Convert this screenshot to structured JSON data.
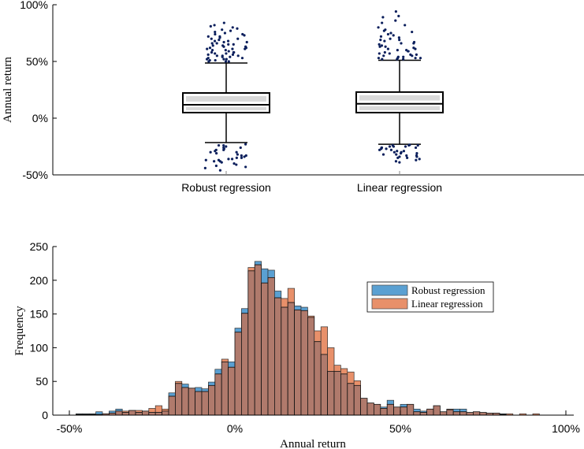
{
  "chart_data": [
    {
      "type": "box",
      "title": "",
      "ylabel": "Annual return",
      "ylim": [
        -50,
        100
      ],
      "yticks": [
        -50,
        0,
        50,
        100
      ],
      "ytick_labels": [
        "-50%",
        "0%",
        "50%",
        "100%"
      ],
      "categories": [
        "Robust regression",
        "Linear regression"
      ],
      "box_color": "#d9d9d9",
      "outlier_color": "#0b1f5c",
      "series": [
        {
          "name": "Robust regression",
          "whisker_low": -21.5,
          "q1": 4.9,
          "median": 11.8,
          "q3": 22.2,
          "whisker_high": 48.6,
          "outliers_high": [
            50,
            50,
            51,
            51,
            52,
            52,
            53,
            53,
            54,
            54,
            55,
            55,
            56,
            56,
            57,
            57,
            58,
            58,
            59,
            60,
            60,
            61,
            61,
            62,
            62,
            63,
            63,
            64,
            64,
            65,
            65,
            66,
            66,
            67,
            67,
            68,
            68,
            69,
            70,
            70,
            71,
            72,
            72,
            73,
            74,
            74,
            75,
            76,
            77,
            78,
            79,
            80,
            81,
            82,
            84,
            50,
            52,
            55,
            58,
            61
          ],
          "outliers_low": [
            -23,
            -24,
            -24,
            -25,
            -26,
            -26,
            -27,
            -28,
            -28,
            -29,
            -30,
            -30,
            -31,
            -32,
            -33,
            -33,
            -34,
            -35,
            -35,
            -36,
            -36,
            -37,
            -37,
            -38,
            -38,
            -39,
            -40,
            -41,
            -42,
            -43,
            -44,
            -46
          ]
        },
        {
          "name": "Linear regression",
          "whisker_low": -23,
          "q1": 4.9,
          "median": 12.7,
          "q3": 23,
          "whisker_high": 51,
          "outliers_high": [
            52,
            52,
            52,
            53,
            53,
            53,
            54,
            54,
            55,
            55,
            56,
            57,
            57,
            58,
            59,
            59,
            60,
            61,
            61,
            62,
            63,
            63,
            64,
            65,
            66,
            66,
            67,
            68,
            69,
            69,
            70,
            71,
            72,
            73,
            74,
            75,
            76,
            77,
            78,
            80,
            82,
            84,
            86,
            89,
            90,
            94,
            53,
            56,
            60
          ],
          "outliers_low": [
            -23.5,
            -24,
            -24,
            -24,
            -25,
            -25,
            -25,
            -26,
            -26,
            -26,
            -27,
            -27,
            -28,
            -28,
            -29,
            -29,
            -30,
            -30,
            -31,
            -31,
            -32,
            -32,
            -33,
            -33,
            -34,
            -34,
            -35,
            -35,
            -36,
            -37,
            -38,
            -39
          ]
        }
      ]
    },
    {
      "type": "bar",
      "title": "",
      "xlabel": "Annual return",
      "ylabel": "Frequency",
      "xlim": [
        -50,
        100
      ],
      "ylim": [
        0,
        250
      ],
      "xticks": [
        -50,
        0,
        50,
        100
      ],
      "xtick_labels": [
        "-50%",
        "0%",
        "50%",
        "100%"
      ],
      "yticks": [
        0,
        50,
        100,
        150,
        200,
        250
      ],
      "ytick_labels": [
        "0",
        "50",
        "100",
        "150",
        "200",
        "250"
      ],
      "bin_start": -48,
      "bin_width": 2,
      "legend_position": "right-center",
      "overlap_color": "#b07a6c",
      "series": [
        {
          "name": "Robust regression",
          "color": "#5aa0d2",
          "values": [
            2,
            2,
            2,
            5,
            2,
            6,
            9,
            4,
            7,
            4,
            6,
            4,
            4,
            6,
            33,
            47,
            46,
            40,
            41,
            39,
            49,
            68,
            79,
            79,
            129,
            158,
            214,
            228,
            217,
            215,
            184,
            160,
            167,
            162,
            160,
            145,
            109,
            90,
            65,
            65,
            61,
            47,
            44,
            25,
            18,
            16,
            12,
            22,
            12,
            16,
            16,
            9,
            6,
            9,
            14,
            5,
            8,
            9,
            9,
            4,
            5,
            4,
            3,
            3,
            2,
            0,
            0,
            0,
            0,
            0
          ]
        },
        {
          "name": "Linear regression",
          "color": "#e8906a",
          "values": [
            1,
            1,
            1,
            1,
            2,
            3,
            6,
            6,
            7,
            7,
            6,
            10,
            14,
            9,
            28,
            50,
            41,
            40,
            35,
            35,
            44,
            61,
            83,
            71,
            123,
            151,
            219,
            223,
            196,
            204,
            174,
            173,
            188,
            156,
            155,
            147,
            125,
            131,
            100,
            74,
            69,
            64,
            51,
            25,
            18,
            16,
            10,
            16,
            12,
            12,
            16,
            5,
            4,
            9,
            14,
            5,
            9,
            5,
            5,
            4,
            5,
            4,
            3,
            3,
            1,
            2,
            0,
            2,
            0,
            2
          ]
        }
      ]
    }
  ]
}
